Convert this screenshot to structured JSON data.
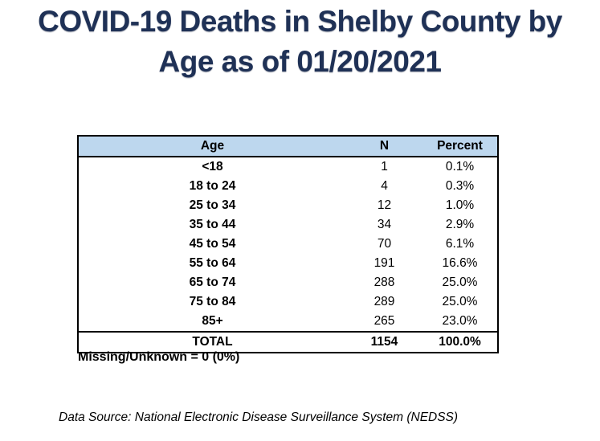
{
  "title": {
    "line1": "COVID-19 Deaths in Shelby County by",
    "line2": "Age as of 01/20/2021"
  },
  "chart_data": {
    "type": "table",
    "title": "COVID-19 Deaths in Shelby County by Age as of 01/20/2021",
    "columns": [
      "Age",
      "N",
      "Percent"
    ],
    "rows": [
      [
        "<18",
        1,
        "0.1%"
      ],
      [
        "18 to 24",
        4,
        "0.3%"
      ],
      [
        "25 to 34",
        12,
        "1.0%"
      ],
      [
        "35 to 44",
        34,
        "2.9%"
      ],
      [
        "45 to 54",
        70,
        "6.1%"
      ],
      [
        "55 to 64",
        191,
        "16.6%"
      ],
      [
        "65 to 74",
        288,
        "25.0%"
      ],
      [
        "75 to 84",
        289,
        "25.0%"
      ],
      [
        "85+",
        265,
        "23.0%"
      ],
      [
        "TOTAL",
        1154,
        "100.0%"
      ]
    ],
    "total_row_label": "TOTAL",
    "notes": [
      "Missing/Unknown = 0 (0%)",
      "Data Source: National Electronic Disease Surveillance System (NEDSS)"
    ]
  },
  "missing_note": "Missing/Unknown = 0 (0%)",
  "data_source": "Data Source: National Electronic Disease Surveillance System (NEDSS)",
  "colors": {
    "title_navy": "#1F3156",
    "header_blue": "#BDD7EE",
    "border_black": "#000000",
    "background": "#FFFFFF"
  }
}
